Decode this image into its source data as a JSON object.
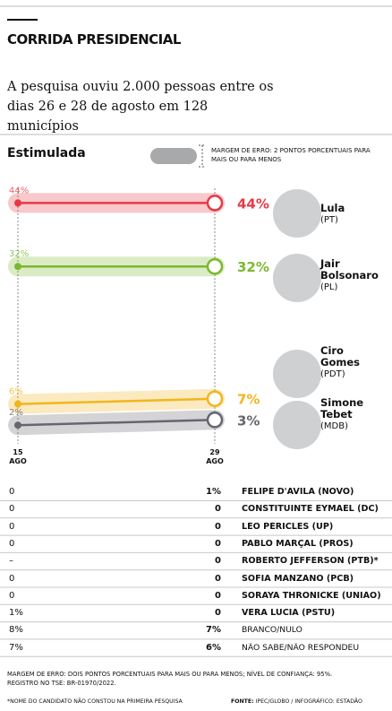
{
  "chart_data": {
    "type": "line",
    "title": "CORRIDA PRESIDENCIAL",
    "subtitle": "A pesquisa ouviu 2.000 pessoas entre os dias 26 e 28 de agosto em 128 municípios",
    "section": "Estimulada",
    "legend_label": "MARGEM DE ERRO: 2 PONTOS PORCENTUAIS PARA MAIS OU PARA MENOS",
    "categories": [
      "15 AGO",
      "29 AGO"
    ],
    "ylim": [
      0,
      45
    ],
    "series": [
      {
        "name": "Lula",
        "party": "(PT)",
        "color": "#e63946",
        "values": [
          44,
          44
        ],
        "value_labels": [
          "44%",
          "44%"
        ]
      },
      {
        "name": "Jair Bolsonaro",
        "party": "(PL)",
        "color": "#7cb82f",
        "values": [
          32,
          32
        ],
        "value_labels": [
          "32%",
          "32%"
        ]
      },
      {
        "name": "Ciro Gomes",
        "party": "(PDT)",
        "color": "#f2b51c",
        "values": [
          6,
          7
        ],
        "value_labels": [
          "6%",
          "7%"
        ]
      },
      {
        "name": "Simone Tebet",
        "party": "(MDB)",
        "color": "#666670",
        "values": [
          2,
          3
        ],
        "value_labels": [
          "2%",
          "3%"
        ]
      }
    ]
  },
  "table": {
    "rows": [
      [
        "0",
        "1%",
        "FELIPE D'AVILA (NOVO)"
      ],
      [
        "0",
        "0",
        "CONSTITUINTE EYMAEL (DC)"
      ],
      [
        "0",
        "0",
        "LÉO PÉRICLES (UP)"
      ],
      [
        "0",
        "0",
        "PABLO MARÇAL (PROS)"
      ],
      [
        "–",
        "0",
        "ROBERTO JEFFERSON (PTB)*"
      ],
      [
        "0",
        "0",
        "SOFIA MANZANO (PCB)"
      ],
      [
        "0",
        "0",
        "SORAYA THRONICKE (UNIÃO)"
      ],
      [
        "1%",
        "0",
        "VERA LÚCIA (PSTU)"
      ],
      [
        "8%",
        "7%",
        "BRANCO/NULO"
      ],
      [
        "7%",
        "6%",
        "NÃO SABE/NÃO RESPONDEU"
      ]
    ]
  },
  "notes": {
    "margin": "MARGEM DE ERRO: DOIS PONTOS PORCENTUAIS PARA MAIS OU PARA MENOS; NÍVEL DE CONFIANÇA: 95%.",
    "registry": "REGISTRO NO TSE: BR-01970/2022.",
    "footnote": "*NOME DO CANDIDATO NÃO CONSTOU NA PRIMEIRA PESQUISA",
    "source_label": "FONTE:",
    "source": "IPEC/GLOBO / INFOGRÁFICO: ESTADÃO"
  }
}
